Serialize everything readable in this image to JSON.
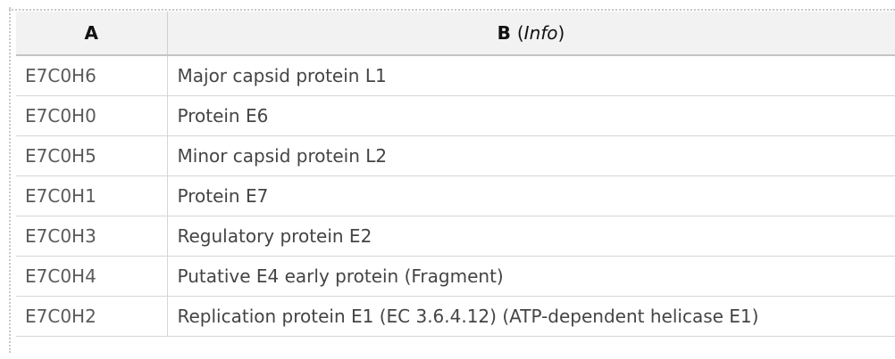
{
  "columns": {
    "a": "A",
    "b": "B",
    "b_note_open": "(",
    "b_note": "Info",
    "b_note_close": ")"
  },
  "rows": [
    {
      "a": "E7C0H6",
      "b": "Major capsid protein L1"
    },
    {
      "a": "E7C0H0",
      "b": "Protein E6"
    },
    {
      "a": "E7C0H5",
      "b": "Minor capsid protein L2"
    },
    {
      "a": "E7C0H1",
      "b": "Protein E7"
    },
    {
      "a": "E7C0H3",
      "b": "Regulatory protein E2"
    },
    {
      "a": "E7C0H4",
      "b": "Putative E4 early protein (Fragment)"
    },
    {
      "a": "E7C0H2",
      "b": "Replication protein E1 (EC 3.6.4.12) (ATP-dependent helicase E1)"
    }
  ]
}
